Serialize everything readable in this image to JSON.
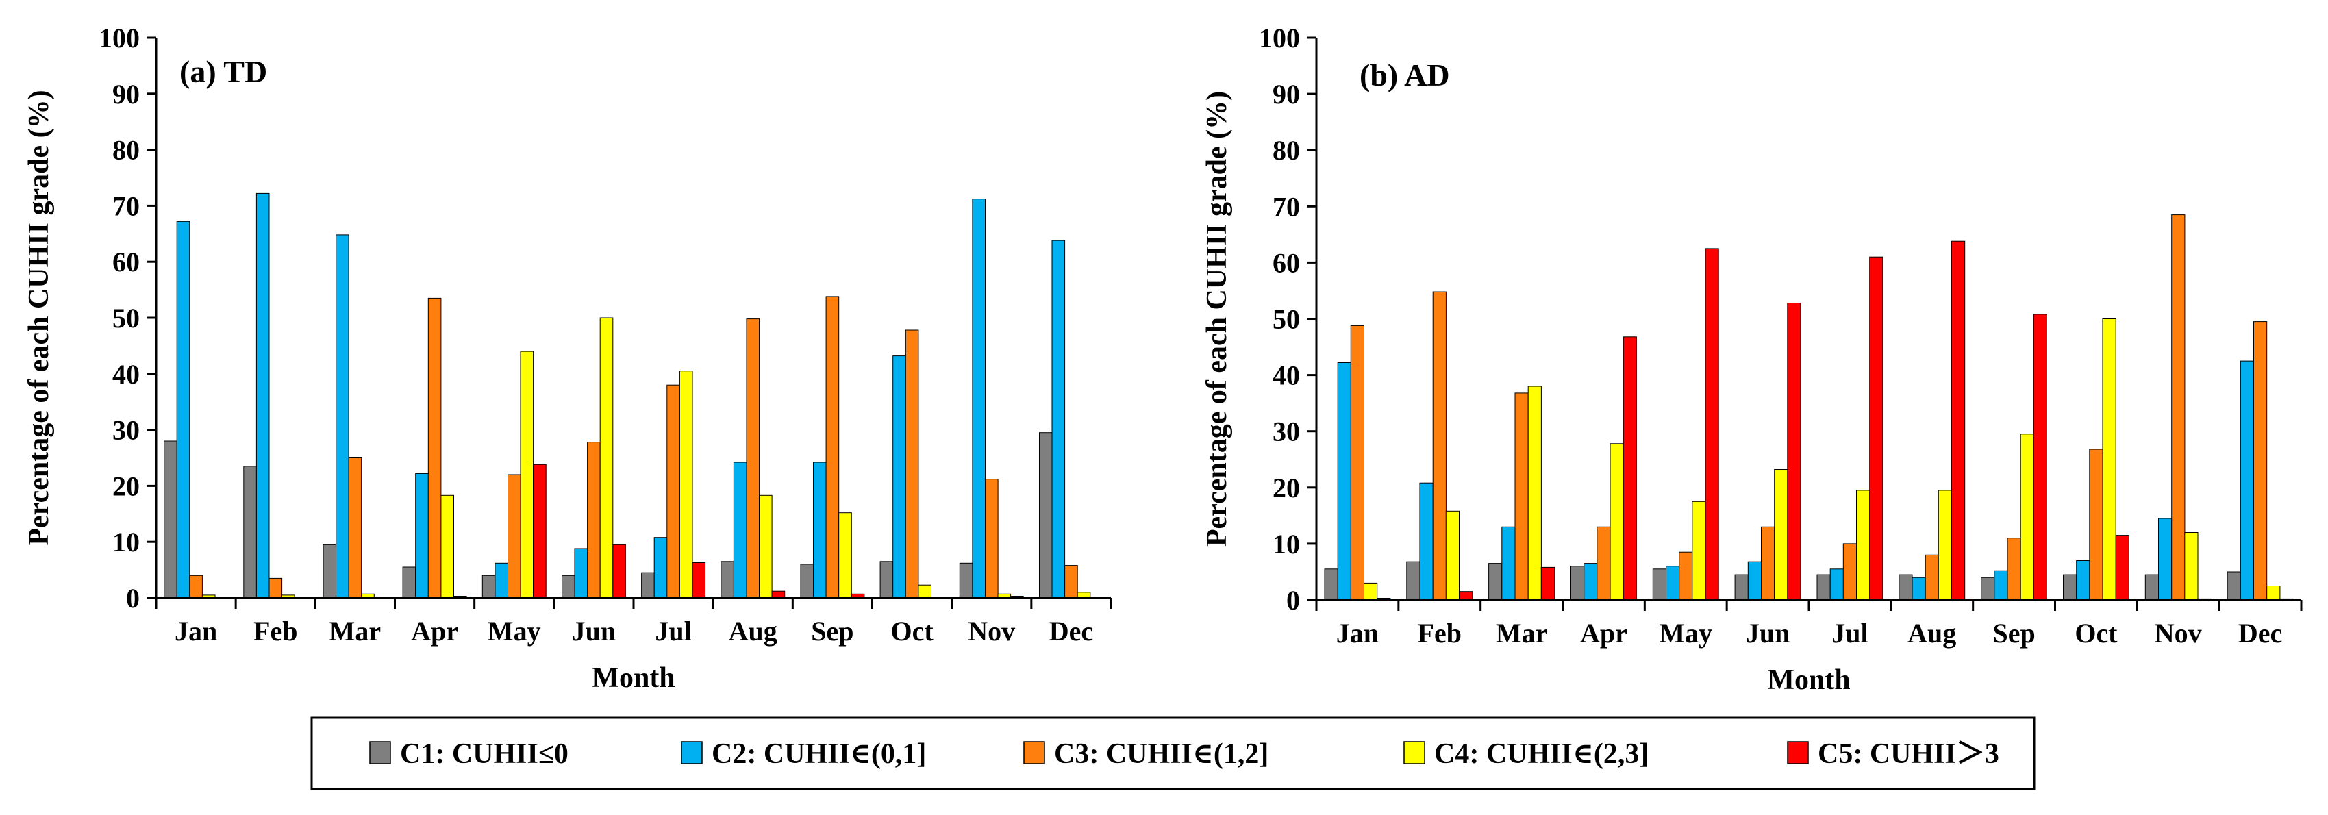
{
  "legend": [
    {
      "label": "C1: CUHII≤0",
      "color": "#7f7f7f"
    },
    {
      "label": "C2: CUHII∈(0,1]",
      "color": "#00b0f0"
    },
    {
      "label": "C3: CUHII∈(1,2]",
      "color": "#ff7f0e"
    },
    {
      "label": "C4: CUHII∈(2,3]",
      "color": "#ffff00"
    },
    {
      "label": "C5: CUHII＞3",
      "color": "#ff0000"
    }
  ],
  "chart_data": [
    {
      "type": "bar",
      "title": "(a)  TD",
      "xlabel": "Month",
      "ylabel": "Percentage of each CUHII grade (%)",
      "ylim": [
        0,
        100
      ],
      "yticks": [
        0,
        10,
        20,
        30,
        40,
        50,
        60,
        70,
        80,
        90,
        100
      ],
      "categories": [
        "Jan",
        "Feb",
        "Mar",
        "Apr",
        "May",
        "Jun",
        "Jul",
        "Aug",
        "Sep",
        "Oct",
        "Nov",
        "Dec"
      ],
      "series": [
        {
          "name": "C1: CUHII≤0",
          "values": [
            28.0,
            23.5,
            9.5,
            5.5,
            4.0,
            4.0,
            4.5,
            6.5,
            6.0,
            6.5,
            6.2,
            29.5
          ]
        },
        {
          "name": "C2: CUHII∈(0,1]",
          "values": [
            67.2,
            72.2,
            64.8,
            22.2,
            6.2,
            8.8,
            10.8,
            24.2,
            24.2,
            43.2,
            71.2,
            63.8
          ]
        },
        {
          "name": "C3: CUHII∈(1,2]",
          "values": [
            4.0,
            3.5,
            25.0,
            53.5,
            22.0,
            27.8,
            38.0,
            49.8,
            53.8,
            47.8,
            21.2,
            5.8
          ]
        },
        {
          "name": "C4: CUHII∈(2,3]",
          "values": [
            0.5,
            0.5,
            0.7,
            18.3,
            44.0,
            50.0,
            40.5,
            18.3,
            15.2,
            2.3,
            0.7,
            1.0
          ]
        },
        {
          "name": "C5: CUHII＞3",
          "values": [
            0.1,
            0.1,
            0.1,
            0.3,
            23.8,
            9.5,
            6.3,
            1.2,
            0.7,
            0.1,
            0.3,
            0.1
          ]
        }
      ]
    },
    {
      "type": "bar",
      "title": "(b) AD",
      "xlabel": "Month",
      "ylabel": "Percentage of each CUHII grade (%)",
      "ylim": [
        0,
        100
      ],
      "yticks": [
        0,
        10,
        20,
        30,
        40,
        50,
        60,
        70,
        80,
        90,
        100
      ],
      "categories": [
        "Jan",
        "Feb",
        "Mar",
        "Apr",
        "May",
        "Jun",
        "Jul",
        "Aug",
        "Sep",
        "Oct",
        "Nov",
        "Dec"
      ],
      "series": [
        {
          "name": "C1: CUHII≤0",
          "values": [
            5.5,
            6.8,
            6.5,
            6.0,
            5.5,
            4.5,
            4.5,
            4.5,
            4.0,
            4.5,
            4.5,
            5.0
          ]
        },
        {
          "name": "C2: CUHII∈(0,1]",
          "values": [
            42.2,
            20.8,
            13.0,
            6.5,
            6.0,
            6.8,
            5.5,
            4.0,
            5.2,
            7.0,
            14.5,
            42.5
          ]
        },
        {
          "name": "C3: CUHII∈(1,2]",
          "values": [
            48.8,
            54.8,
            36.8,
            13.0,
            8.5,
            13.0,
            10.0,
            8.0,
            11.0,
            26.8,
            68.5,
            49.5
          ]
        },
        {
          "name": "C4: CUHII∈(2,3]",
          "values": [
            3.0,
            15.8,
            38.0,
            27.8,
            17.5,
            23.2,
            19.5,
            19.5,
            29.5,
            50.0,
            12.0,
            2.5
          ]
        },
        {
          "name": "C5: CUHII＞3",
          "values": [
            0.3,
            1.5,
            5.8,
            46.8,
            62.5,
            52.8,
            61.0,
            63.8,
            50.8,
            11.5,
            0.2,
            0.2
          ]
        }
      ]
    }
  ]
}
